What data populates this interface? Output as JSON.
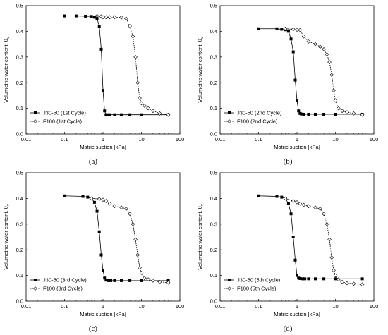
{
  "chart_data": [
    {
      "type": "scatter",
      "panel_label": "(a)",
      "xlabel": "Matric suction [kPa]",
      "ylabel": "Volumetric water content, θ",
      "ylabel_sub": "v",
      "x_scale": "log",
      "xlim": [
        0.01,
        100
      ],
      "ylim": [
        0,
        0.5
      ],
      "x_ticks": [
        "0.01",
        "0.1",
        "1",
        "10",
        "100"
      ],
      "y_ticks": [
        "0.0",
        "0.1",
        "0.2",
        "0.3",
        "0.4",
        "0.5"
      ],
      "grid": false,
      "legend_position": "bottom-left",
      "series": [
        {
          "name": "J30-50 (1st Cycle)",
          "marker": "filled-square",
          "x": [
            0.1,
            0.2,
            0.35,
            0.5,
            0.6,
            0.7,
            0.8,
            0.9,
            1.0,
            1.1,
            1.2,
            1.3,
            1.5,
            2,
            3,
            5,
            10,
            50
          ],
          "y": [
            0.46,
            0.46,
            0.459,
            0.458,
            0.455,
            0.45,
            0.42,
            0.33,
            0.17,
            0.09,
            0.075,
            0.075,
            0.075,
            0.075,
            0.075,
            0.075,
            0.075,
            0.075
          ]
        },
        {
          "name": "F100 (1st Cycle)",
          "marker": "open-diamond",
          "x": [
            0.7,
            0.9,
            1.0,
            1.2,
            1.5,
            2,
            3,
            4,
            5,
            6,
            7,
            8,
            9,
            10,
            12,
            15,
            20,
            30,
            50
          ],
          "y": [
            0.46,
            0.458,
            0.455,
            0.455,
            0.455,
            0.455,
            0.454,
            0.45,
            0.42,
            0.38,
            0.3,
            0.2,
            0.14,
            0.12,
            0.11,
            0.1,
            0.09,
            0.08,
            0.075
          ]
        }
      ]
    },
    {
      "type": "scatter",
      "panel_label": "(b)",
      "xlabel": "Matric suction [kPa]",
      "ylabel": "Volumetric water content, θ",
      "ylabel_sub": "v",
      "x_scale": "log",
      "xlim": [
        0.01,
        100
      ],
      "ylim": [
        0,
        0.5
      ],
      "x_ticks": [
        "0.01",
        "0.1",
        "1",
        "10",
        "100"
      ],
      "y_ticks": [
        "0.0",
        "0.1",
        "0.2",
        "0.3",
        "0.4",
        "0.5"
      ],
      "grid": false,
      "legend_position": "bottom-left",
      "series": [
        {
          "name": "J30-50 (2nd Cycle)",
          "marker": "filled-square",
          "x": [
            0.1,
            0.3,
            0.4,
            0.5,
            0.6,
            0.7,
            0.8,
            0.9,
            1.0,
            1.1,
            1.2,
            1.3,
            1.5,
            2,
            3,
            5,
            10,
            50
          ],
          "y": [
            0.41,
            0.41,
            0.408,
            0.406,
            0.4,
            0.37,
            0.32,
            0.21,
            0.13,
            0.09,
            0.08,
            0.078,
            0.077,
            0.077,
            0.077,
            0.077,
            0.077,
            0.077
          ]
        },
        {
          "name": "F100 (2nd Cycle)",
          "marker": "open-diamond",
          "x": [
            0.5,
            0.8,
            1.0,
            1.2,
            1.5,
            2,
            3,
            4,
            5,
            6,
            7,
            8,
            9,
            10,
            12,
            15,
            20,
            30,
            50
          ],
          "y": [
            0.41,
            0.408,
            0.406,
            0.405,
            0.38,
            0.36,
            0.35,
            0.34,
            0.33,
            0.31,
            0.28,
            0.23,
            0.17,
            0.13,
            0.1,
            0.09,
            0.085,
            0.08,
            0.075
          ]
        }
      ]
    },
    {
      "type": "scatter",
      "panel_label": "(c)",
      "xlabel": "Matric suction [kPa]",
      "ylabel": "Volumetric water content, θ",
      "ylabel_sub": "v",
      "x_scale": "log",
      "xlim": [
        0.01,
        100
      ],
      "ylim": [
        0,
        0.5
      ],
      "x_ticks": [
        "0.01",
        "0.1",
        "1",
        "10",
        "100"
      ],
      "y_ticks": [
        "0.0",
        "0.1",
        "0.2",
        "0.3",
        "0.4",
        "0.5"
      ],
      "grid": false,
      "legend_position": "bottom-left",
      "series": [
        {
          "name": "J30-50 (3rd Cycle)",
          "marker": "filled-square",
          "x": [
            0.1,
            0.3,
            0.4,
            0.5,
            0.6,
            0.7,
            0.8,
            0.9,
            1.0,
            1.1,
            1.2,
            1.4,
            1.6,
            2,
            3,
            5,
            10,
            50
          ],
          "y": [
            0.41,
            0.408,
            0.405,
            0.4,
            0.385,
            0.35,
            0.27,
            0.18,
            0.12,
            0.09,
            0.082,
            0.08,
            0.08,
            0.08,
            0.08,
            0.08,
            0.08,
            0.08
          ]
        },
        {
          "name": "F100 (3rd Cycle)",
          "marker": "open-diamond",
          "x": [
            0.5,
            0.8,
            1.0,
            1.2,
            1.5,
            2,
            3,
            4,
            5,
            6,
            7,
            8,
            9,
            10,
            12,
            15,
            20,
            30,
            50
          ],
          "y": [
            0.4,
            0.398,
            0.395,
            0.39,
            0.38,
            0.37,
            0.365,
            0.36,
            0.34,
            0.3,
            0.24,
            0.18,
            0.13,
            0.11,
            0.09,
            0.085,
            0.08,
            0.075,
            0.072
          ]
        }
      ]
    },
    {
      "type": "scatter",
      "panel_label": "(d)",
      "xlabel": "Matric suction [kPa]",
      "ylabel": "Volumetric water content, θ",
      "ylabel_sub": "v",
      "x_scale": "log",
      "xlim": [
        0.01,
        100
      ],
      "ylim": [
        0,
        0.5
      ],
      "x_ticks": [
        "0.01",
        "0.1",
        "1",
        "10",
        "100"
      ],
      "y_ticks": [
        "0.0",
        "0.1",
        "0.2",
        "0.3",
        "0.4",
        "0.5"
      ],
      "grid": false,
      "legend_position": "bottom-left",
      "series": [
        {
          "name": "J30-50 (5th Cycle)",
          "marker": "filled-square",
          "x": [
            0.1,
            0.3,
            0.4,
            0.5,
            0.6,
            0.7,
            0.8,
            0.9,
            1.0,
            1.1,
            1.2,
            1.4,
            1.6,
            2,
            3,
            5,
            10,
            50
          ],
          "y": [
            0.41,
            0.408,
            0.405,
            0.4,
            0.38,
            0.34,
            0.25,
            0.16,
            0.1,
            0.09,
            0.088,
            0.087,
            0.087,
            0.087,
            0.087,
            0.087,
            0.087,
            0.087
          ]
        },
        {
          "name": "F100 (5th Cycle)",
          "marker": "open-diamond",
          "x": [
            0.5,
            0.8,
            1.0,
            1.2,
            1.5,
            2,
            3,
            4,
            5,
            6,
            7,
            8,
            9,
            10,
            12,
            15,
            20,
            30,
            50
          ],
          "y": [
            0.4,
            0.39,
            0.385,
            0.38,
            0.375,
            0.37,
            0.365,
            0.36,
            0.34,
            0.3,
            0.24,
            0.17,
            0.12,
            0.1,
            0.085,
            0.075,
            0.07,
            0.068,
            0.065
          ]
        }
      ]
    }
  ]
}
